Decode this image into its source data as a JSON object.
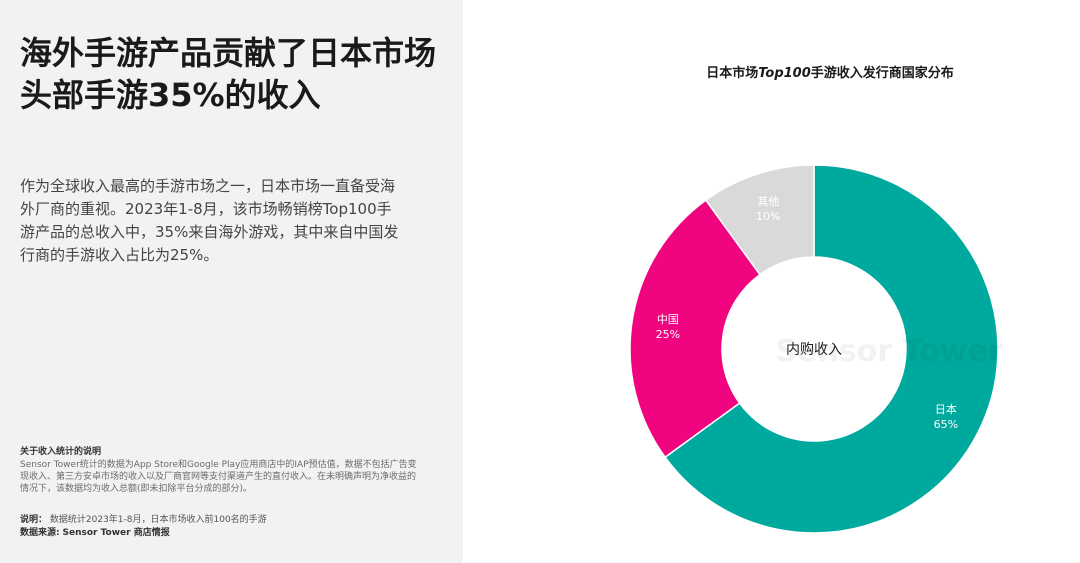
{
  "headline": "海外手游产品贡献了日本市场头部手游35%的收入",
  "description": "作为全球收入最高的手游市场之一，日本市场一直备受海外厂商的重视。2023年1-8月，该市场畅销榜Top100手游产品的总收入中，35%来自海外游戏，其中来自中国发行商的手游收入占比为25%。",
  "note": {
    "title": "关于收入统计的说明",
    "body": "Sensor Tower统计的数据为App Store和Google Play应用商店中的IAP预估值，数据不包括广告变现收入、第三方安卓市场的收入以及厂商官网等支付渠道产生的直付收入。在未明确声明为净收益的情况下，该数据均为收入总额(即未扣除平台分成的部分)。"
  },
  "footer": {
    "desc_label": "说明：",
    "desc_text": "数据统计2023年1-8月，日本市场收入前100名的手游",
    "source_label": "数据来源:",
    "source_text": "Sensor Tower 商店情报"
  },
  "watermark": "Sensor Tower",
  "chart_data": {
    "type": "pie",
    "title_pre": "日本市场",
    "title_em": "Top100",
    "title_post": "手游收入发行商国家分布",
    "center_label": "内购收入",
    "slices": [
      {
        "label": "日本",
        "value": 65,
        "display": "65%",
        "color": "#00a99d"
      },
      {
        "label": "中国",
        "value": 25,
        "display": "25%",
        "color": "#f0047f"
      },
      {
        "label": "其他",
        "value": 10,
        "display": "10%",
        "color": "#d9d9d9"
      }
    ]
  }
}
